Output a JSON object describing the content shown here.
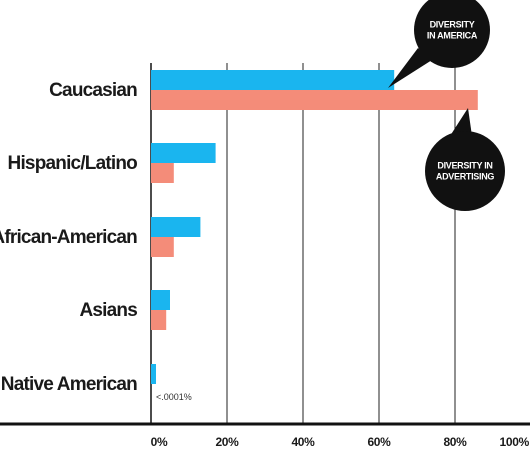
{
  "chart_data": {
    "type": "bar",
    "orientation": "horizontal",
    "categories": [
      "Caucasian",
      "Hispanic/Latino",
      "African-American",
      "Asians",
      "Native American"
    ],
    "series": [
      {
        "name": "DIVERSITY IN AMERICA",
        "color": "#1ab5ef",
        "values": [
          64,
          17,
          13,
          5,
          1
        ]
      },
      {
        "name": "DIVERSITY IN ADVERTISING",
        "color": "#f48c79",
        "values": [
          86,
          6,
          6,
          4,
          0
        ]
      }
    ],
    "x_ticks": [
      "0%",
      "20%",
      "40%",
      "60%",
      "80%",
      "100%"
    ],
    "xlim": [
      0,
      100
    ],
    "grid": "vertical",
    "annotation": "<.0001%",
    "legend": "callout bubbles"
  },
  "colors": {
    "america": "#1ab5ef",
    "advertising": "#f48c79",
    "bubble": "#111111",
    "axis": "#111111",
    "grid": "#222222"
  }
}
